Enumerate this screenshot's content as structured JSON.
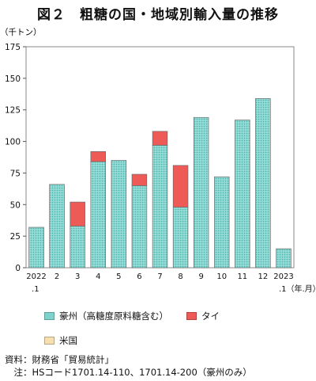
{
  "chart_data": {
    "type": "bar",
    "title": "図２　粗糖の国・地域別輸入量の推移",
    "ylabel": "（千トン）",
    "xlabel": ".1（年.月）",
    "ylim": [
      0,
      175
    ],
    "yticks": [
      0,
      25,
      50,
      75,
      100,
      125,
      150,
      175
    ],
    "categories": [
      "2022.1",
      "2",
      "3",
      "4",
      "5",
      "6",
      "7",
      "8",
      "9",
      "10",
      "11",
      "12",
      "2023.1"
    ],
    "tick_labels_top": [
      "2022",
      "2",
      "3",
      "4",
      "5",
      "6",
      "7",
      "8",
      "9",
      "10",
      "11",
      "12",
      "2023"
    ],
    "tick_labels_bottom": [
      ".1",
      "",
      "",
      "",
      "",
      "",
      "",
      "",
      "",
      "",
      "",
      "",
      ".1（年.月）"
    ],
    "stacked": true,
    "grid": false,
    "legend_position": "bottom",
    "series": [
      {
        "name": "豪州（高糖度原料糖含む）",
        "color": "#7fd3cc",
        "pattern": "dotted",
        "values": [
          32,
          66,
          33,
          84,
          85,
          65,
          97,
          48,
          119,
          72,
          117,
          134,
          15
        ]
      },
      {
        "name": "タイ",
        "color": "#ee5a55",
        "pattern": "solid",
        "values": [
          0,
          0,
          19,
          8,
          0,
          9,
          11,
          33,
          0,
          0,
          0,
          0,
          0
        ]
      },
      {
        "name": "米国",
        "color": "#f7dfb0",
        "pattern": "solid",
        "values": [
          0,
          0,
          0,
          0,
          0,
          0,
          0,
          0,
          0,
          0,
          0,
          0,
          0
        ]
      }
    ]
  },
  "notes": {
    "source": "資料：財務省「貿易統計」",
    "remark": "　注：HSコード1701.14-110、1701.14-200（豪州のみ）"
  }
}
